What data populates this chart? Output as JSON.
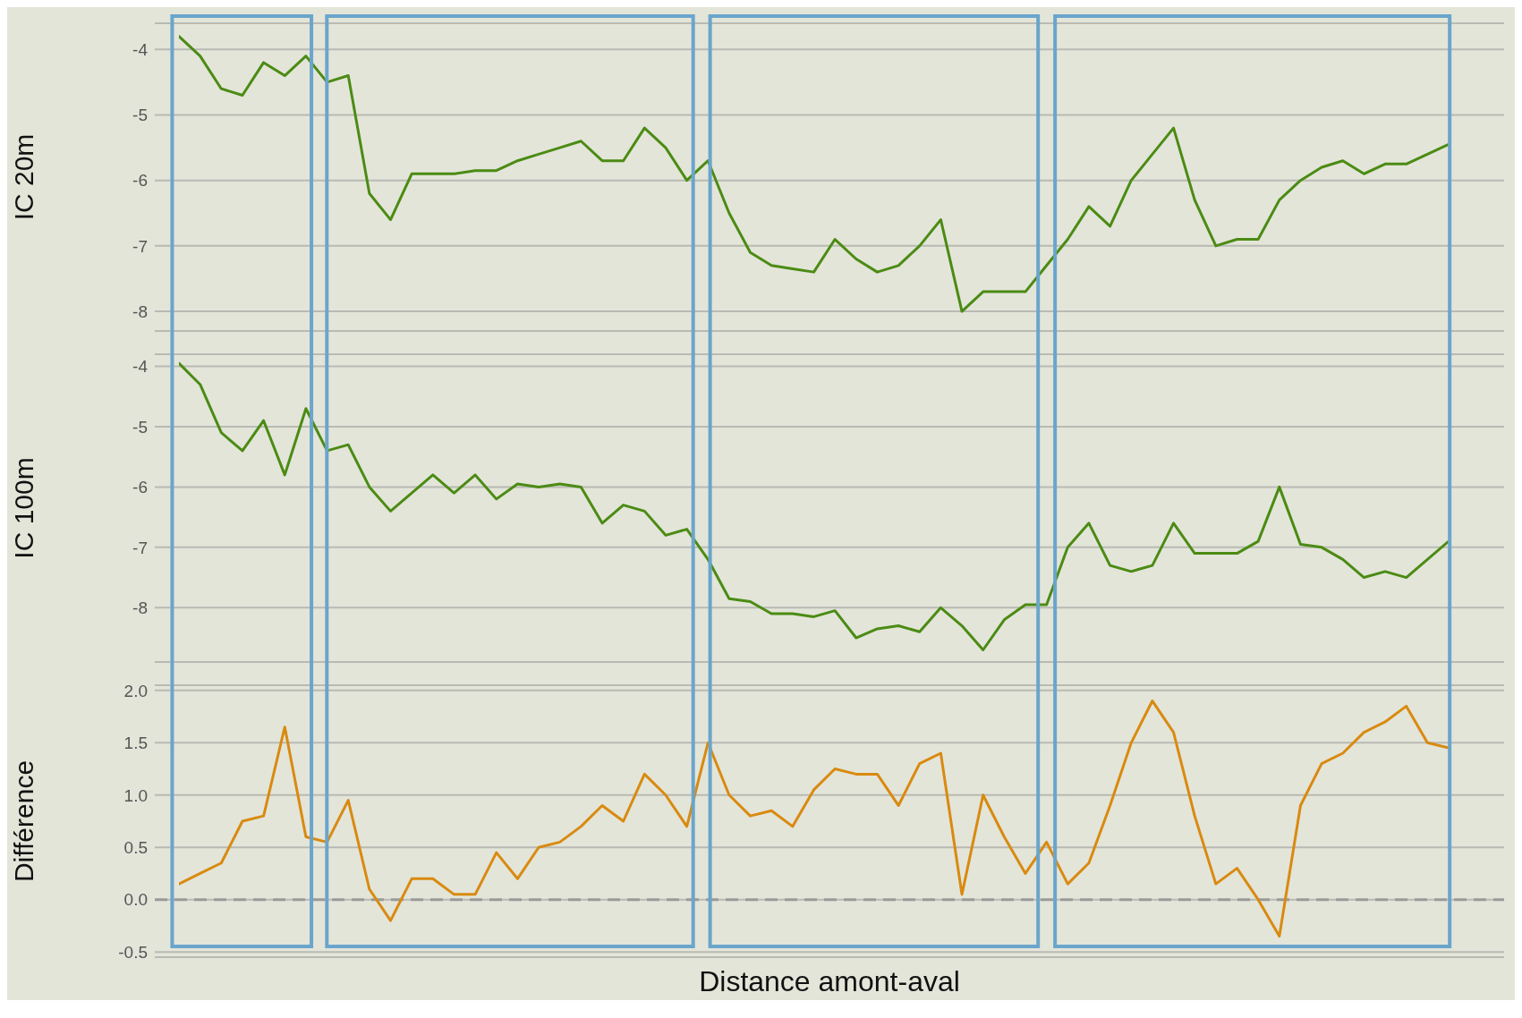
{
  "chart_data": [
    {
      "type": "line",
      "ylabel": "IC 20m",
      "categories": [
        null,
        null,
        null,
        null,
        null,
        null,
        null,
        null,
        null,
        null,
        null,
        null,
        null,
        null,
        null,
        null,
        null,
        null,
        null,
        null,
        null,
        null,
        null,
        null,
        null,
        null,
        null,
        null,
        null,
        null,
        null,
        null,
        null,
        null,
        null,
        null,
        null,
        null,
        null,
        null,
        null,
        null,
        null,
        null,
        null,
        null,
        null,
        null,
        null,
        null,
        null,
        null,
        null,
        null,
        null,
        null,
        null,
        null,
        null,
        null,
        null
      ],
      "ylim": [
        -8.3,
        -3.6
      ],
      "yticks": [
        -8,
        -7,
        -6,
        -5,
        -4
      ],
      "grid": "y",
      "tick_labels": "y",
      "legend": false,
      "marker": "none",
      "line_style": "solid",
      "series": [
        {
          "color": "#4b8b13",
          "values": [
            -3.8,
            -4.1,
            -4.6,
            -4.7,
            -4.2,
            -4.4,
            -4.1,
            -4.5,
            -4.4,
            -6.2,
            -6.6,
            -5.9,
            -5.9,
            -5.9,
            -5.85,
            -5.85,
            -5.7,
            -5.6,
            -5.5,
            -5.4,
            -5.7,
            -5.7,
            -5.2,
            -5.5,
            -6.0,
            -5.7,
            -6.5,
            -7.1,
            -7.3,
            -7.35,
            -7.4,
            -6.9,
            -7.2,
            -7.4,
            -7.3,
            -7.0,
            -6.6,
            -8.0,
            -7.7,
            -7.7,
            -7.7,
            -7.3,
            -6.9,
            -6.4,
            -6.7,
            -6.0,
            -5.6,
            -5.2,
            -6.3,
            -7.0,
            -6.9,
            -6.9,
            -6.3,
            -6.0,
            -5.8,
            -5.7,
            -5.9,
            -5.75,
            -5.75,
            -5.6,
            -5.45
          ]
        }
      ]
    },
    {
      "type": "line",
      "ylabel": "IC 100m",
      "categories": [
        null,
        null,
        null,
        null,
        null,
        null,
        null,
        null,
        null,
        null,
        null,
        null,
        null,
        null,
        null,
        null,
        null,
        null,
        null,
        null,
        null,
        null,
        null,
        null,
        null,
        null,
        null,
        null,
        null,
        null,
        null,
        null,
        null,
        null,
        null,
        null,
        null,
        null,
        null,
        null,
        null,
        null,
        null,
        null,
        null,
        null,
        null,
        null,
        null,
        null,
        null,
        null,
        null,
        null,
        null,
        null,
        null,
        null,
        null,
        null,
        null
      ],
      "ylim": [
        -8.9,
        -3.8
      ],
      "yticks": [
        -8,
        -7,
        -6,
        -5,
        -4
      ],
      "grid": "y",
      "tick_labels": "y",
      "legend": false,
      "marker": "none",
      "line_style": "solid",
      "series": [
        {
          "color": "#4b8b13",
          "values": [
            -3.95,
            -4.3,
            -5.1,
            -5.4,
            -4.9,
            -5.8,
            -4.7,
            -5.4,
            -5.3,
            -6.0,
            -6.4,
            -6.1,
            -5.8,
            -6.1,
            -5.8,
            -6.2,
            -5.95,
            -6.0,
            -5.95,
            -6.0,
            -6.6,
            -6.3,
            -6.4,
            -6.8,
            -6.7,
            -7.2,
            -7.85,
            -7.9,
            -8.1,
            -8.1,
            -8.15,
            -8.05,
            -8.5,
            -8.35,
            -8.3,
            -8.4,
            -8.0,
            -8.3,
            -8.7,
            -8.2,
            -7.95,
            -7.95,
            -7.0,
            -6.6,
            -7.3,
            -7.4,
            -7.3,
            -6.6,
            -7.1,
            -7.1,
            -7.1,
            -6.9,
            -6.0,
            -6.95,
            -7.0,
            -7.2,
            -7.5,
            -7.4,
            -7.5,
            -7.2,
            -6.9
          ]
        }
      ]
    },
    {
      "type": "line",
      "ylabel": "Différence",
      "xlabel": "Distance amont-aval",
      "categories": [
        null,
        null,
        null,
        null,
        null,
        null,
        null,
        null,
        null,
        null,
        null,
        null,
        null,
        null,
        null,
        null,
        null,
        null,
        null,
        null,
        null,
        null,
        null,
        null,
        null,
        null,
        null,
        null,
        null,
        null,
        null,
        null,
        null,
        null,
        null,
        null,
        null,
        null,
        null,
        null,
        null,
        null,
        null,
        null,
        null,
        null,
        null,
        null,
        null,
        null,
        null,
        null,
        null,
        null,
        null,
        null,
        null,
        null,
        null,
        null,
        null
      ],
      "ylim": [
        -0.55,
        2.05
      ],
      "yticks": [
        {
          "value": -0.5,
          "label": "-0.5"
        },
        {
          "value": 0,
          "label": "0.0"
        },
        {
          "value": 0.5,
          "label": "0.5"
        },
        {
          "value": 1,
          "label": "1.0"
        },
        {
          "value": 1.5,
          "label": "1.5"
        },
        {
          "value": 2,
          "label": "2.0"
        }
      ],
      "grid": "y",
      "tick_labels": "y",
      "legend": false,
      "marker": "none",
      "line_style": "solid",
      "ref_lines": [
        {
          "axis": "y",
          "value": 0,
          "color": "#9a9a9a",
          "line_style": "dashed"
        }
      ],
      "series": [
        {
          "color": "#d98a10",
          "values": [
            0.15,
            0.25,
            0.35,
            0.75,
            0.8,
            1.65,
            0.6,
            0.55,
            0.95,
            0.1,
            -0.2,
            0.2,
            0.2,
            0.05,
            0.05,
            0.45,
            0.2,
            0.5,
            0.55,
            0.7,
            0.9,
            0.75,
            1.2,
            1.0,
            0.7,
            1.5,
            1.0,
            0.8,
            0.85,
            0.7,
            1.05,
            1.25,
            1.2,
            1.2,
            0.9,
            1.3,
            1.4,
            0.05,
            1.0,
            0.6,
            0.25,
            0.55,
            0.15,
            0.35,
            0.9,
            1.5,
            1.9,
            1.6,
            0.8,
            0.15,
            0.3,
            0.0,
            -0.35,
            0.9,
            1.3,
            1.4,
            1.6,
            1.7,
            1.85,
            1.5,
            1.45
          ]
        }
      ]
    }
  ]
}
